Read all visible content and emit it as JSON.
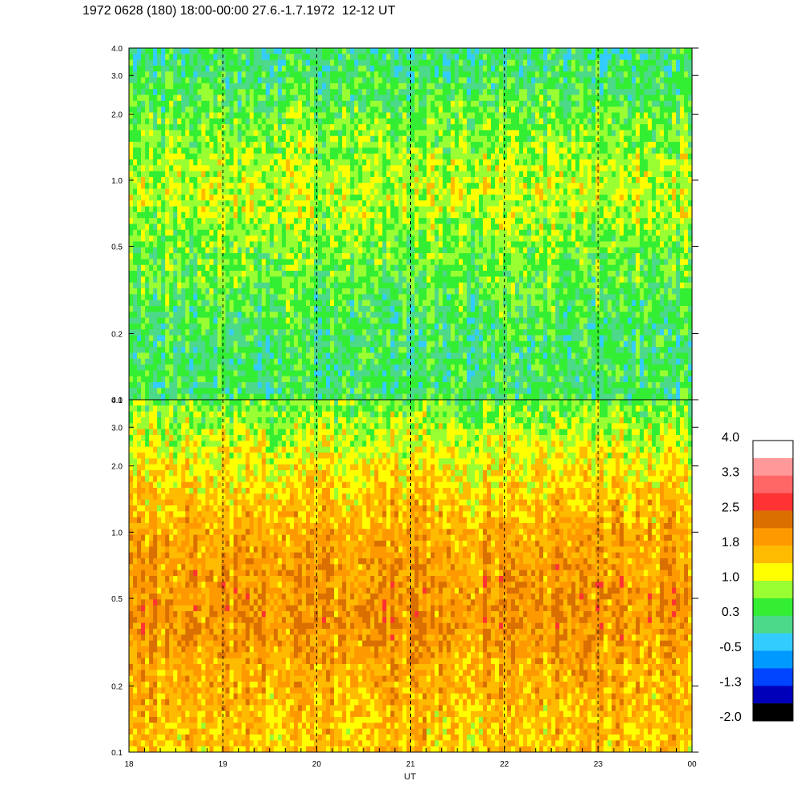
{
  "title": "1972 0628 (180) 18:00-00:00 27.6.-1.7.1972  12-12 UT",
  "chart_data": [
    {
      "type": "heatmap",
      "panel": "top",
      "xlabel": "",
      "ylabel": "",
      "x_ticks": [
        "18",
        "19",
        "20",
        "21",
        "22",
        "23",
        "00"
      ],
      "y_ticks": [
        "0.1",
        "0.2",
        "0.5",
        "1.0",
        "2.0",
        "3.0",
        "4.0"
      ],
      "y_values": [
        0.1,
        0.2,
        0.5,
        1.0,
        2.0,
        3.0,
        4.0
      ],
      "ylim": [
        0.1,
        4.0
      ],
      "y_scale": "log",
      "value_profile_low_to_high_freq": [
        0.3,
        0.3,
        0.6,
        1.0,
        0.6,
        0.1
      ],
      "dominant_color": "green"
    },
    {
      "type": "heatmap",
      "panel": "bottom",
      "xlabel": "UT",
      "ylabel": "",
      "x_ticks": [
        "18",
        "19",
        "20",
        "21",
        "22",
        "23",
        "00"
      ],
      "y_ticks": [
        "0.1",
        "0.2",
        "0.5",
        "1.0",
        "2.0",
        "3.0",
        "4.0"
      ],
      "y_values": [
        0.1,
        0.2,
        0.5,
        1.0,
        2.0,
        3.0,
        4.0
      ],
      "ylim": [
        0.1,
        4.0
      ],
      "y_scale": "log",
      "value_profile_low_to_high_freq": [
        1.5,
        1.7,
        2.0,
        1.8,
        1.3,
        0.6
      ],
      "dominant_color": "orange"
    }
  ],
  "colorbar": {
    "labels": [
      "4.0",
      "3.3",
      "2.5",
      "1.8",
      "1.0",
      "0.3",
      "-0.5",
      "-1.3",
      "-2.0"
    ],
    "colors": [
      "#ffffff",
      "#ff9999",
      "#ff6666",
      "#ff3333",
      "#d97000",
      "#ff9900",
      "#ffbb00",
      "#ffff00",
      "#99ff33",
      "#33ee33",
      "#4dd98a",
      "#33ccff",
      "#0099ff",
      "#0044ff",
      "#0000bb",
      "#000000"
    ]
  },
  "x_axis_label": "UT"
}
